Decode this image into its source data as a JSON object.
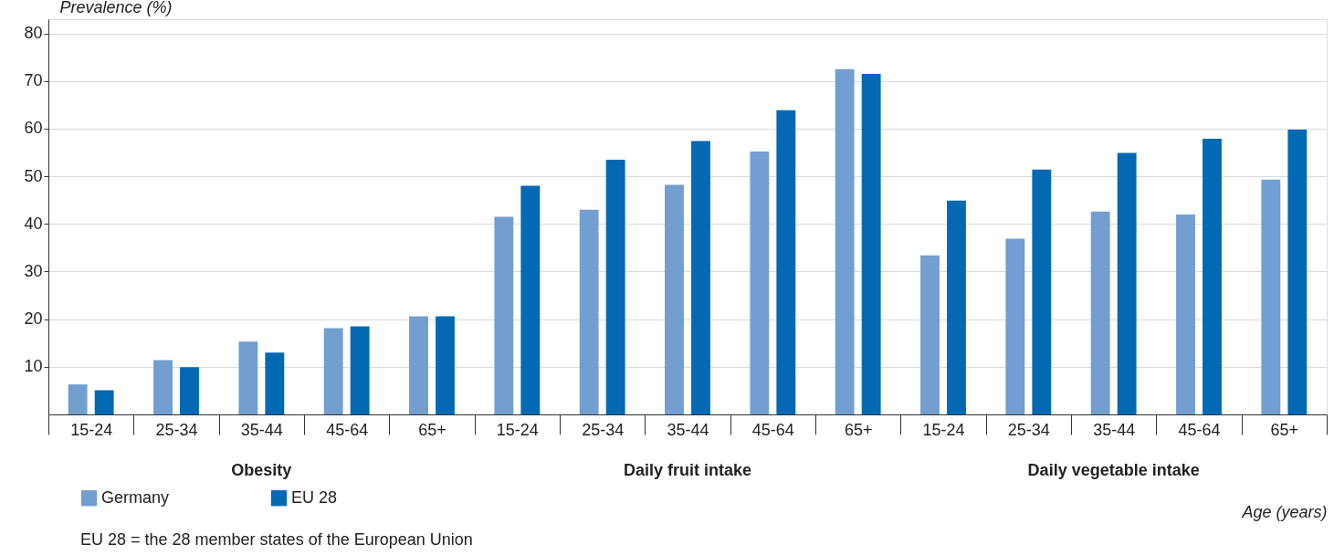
{
  "chart_data": {
    "type": "bar",
    "ylabel": "Prevalence (%)",
    "xlabel": "Age (years)",
    "categories": [
      "15-24",
      "25-34",
      "35-44",
      "45-64",
      "65+",
      "15-24",
      "25-34",
      "35-44",
      "45-64",
      "65+",
      "15-24",
      "25-34",
      "35-44",
      "45-64",
      "65+"
    ],
    "series": [
      {
        "name": "Germany",
        "color": "#729fcf",
        "values": [
          6.3,
          11.4,
          15.3,
          18.1,
          20.6,
          41.5,
          43.0,
          48.2,
          55.2,
          72.5,
          33.4,
          36.9,
          42.6,
          42.0,
          49.3
        ]
      },
      {
        "name": "EU 28",
        "color": "#0369b3",
        "values": [
          5.1,
          9.9,
          13.0,
          18.5,
          20.6,
          48.0,
          53.5,
          57.4,
          63.9,
          71.5,
          44.9,
          51.4,
          54.9,
          57.9,
          59.8
        ]
      }
    ],
    "annotations": [
      "Obesity",
      "Daily fruit intake",
      "Daily vegetable intake",
      "EU 28 = the 28 member states of the European Union"
    ],
    "ylim": [
      0,
      83
    ],
    "yticks": [
      10,
      20,
      30,
      40,
      50,
      60,
      70,
      80
    ],
    "grid": "y",
    "legend": "bottom"
  }
}
